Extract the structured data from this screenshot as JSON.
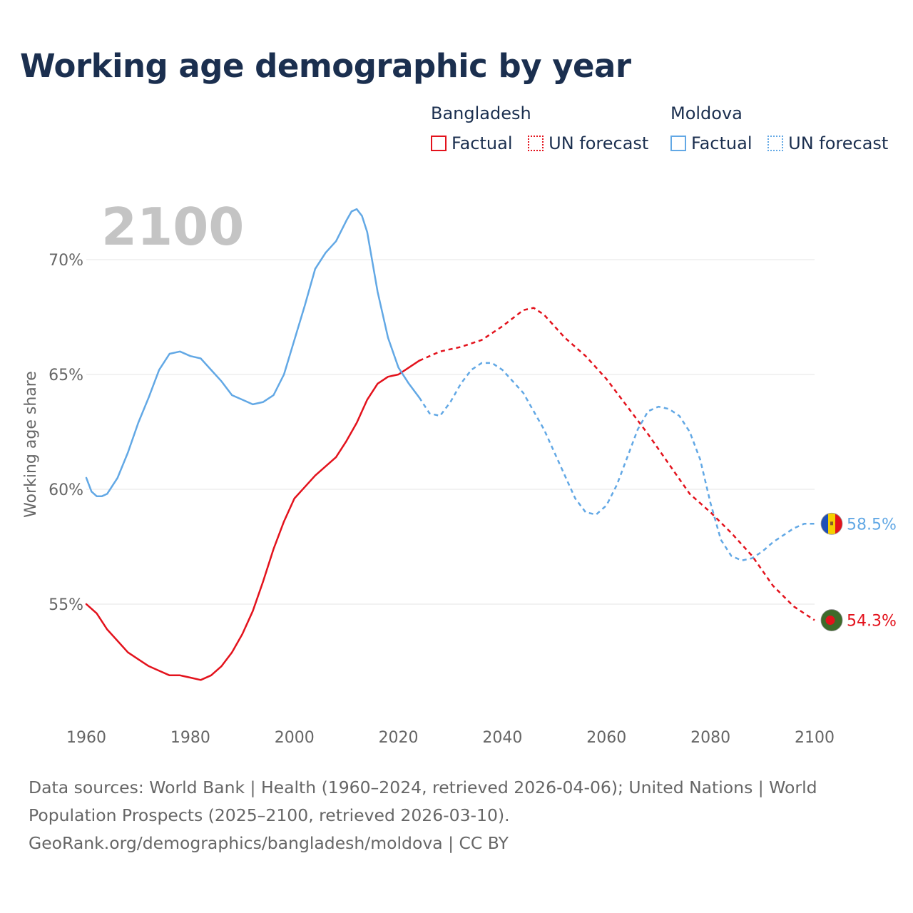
{
  "title": "Working age demographic by year",
  "legend": {
    "groups": [
      {
        "country": "Bangladesh",
        "color": "#e3121c",
        "factual_label": "Factual",
        "forecast_label": "UN forecast"
      },
      {
        "country": "Moldova",
        "color": "#62a8e5",
        "factual_label": "Factual",
        "forecast_label": "UN forecast"
      }
    ]
  },
  "year_watermark": "2100",
  "sources": {
    "line1": "Data sources: World Bank | Health (1960–2024, retrieved 2026-04-06); United Nations | World",
    "line2": "Population Prospects (2025–2100, retrieved 2026-03-10).",
    "line3": "GeoRank.org/demographics/bangladesh/moldova | CC BY"
  },
  "chart_data": {
    "type": "line",
    "title": "Working age demographic by year",
    "xlabel": "",
    "ylabel": "Working age share",
    "xlim": [
      1960,
      2100
    ],
    "ylim": [
      50.5,
      73
    ],
    "x_ticks": [
      1960,
      1980,
      2000,
      2020,
      2040,
      2060,
      2080,
      2100
    ],
    "x_tick_labels": [
      "1960",
      "1980",
      "2000",
      "2020",
      "2040",
      "2060",
      "2080",
      "2100"
    ],
    "y_ticks": [
      55,
      60,
      65,
      70
    ],
    "y_tick_labels": [
      "55%",
      "60%",
      "65%",
      "70%"
    ],
    "grid": true,
    "series": [
      {
        "name": "Bangladesh",
        "color": "#e3121c",
        "flag": "bangladesh-flag",
        "end_label": "54.3%",
        "factual": {
          "x": [
            1960,
            1962,
            1964,
            1966,
            1968,
            1970,
            1972,
            1974,
            1976,
            1978,
            1980,
            1982,
            1984,
            1986,
            1988,
            1990,
            1992,
            1994,
            1996,
            1998,
            2000,
            2002,
            2004,
            2006,
            2008,
            2010,
            2012,
            2014,
            2016,
            2018,
            2020,
            2022,
            2024
          ],
          "y": [
            55.0,
            54.6,
            53.9,
            53.4,
            52.9,
            52.6,
            52.3,
            52.1,
            51.9,
            51.9,
            51.8,
            51.7,
            51.9,
            52.3,
            52.9,
            53.7,
            54.7,
            56.0,
            57.4,
            58.6,
            59.6,
            60.1,
            60.6,
            61.0,
            61.4,
            62.1,
            62.9,
            63.9,
            64.6,
            64.9,
            65.0,
            65.3,
            65.6
          ]
        },
        "forecast": {
          "x": [
            2024,
            2028,
            2032,
            2036,
            2040,
            2044,
            2046,
            2048,
            2052,
            2056,
            2060,
            2064,
            2068,
            2072,
            2076,
            2080,
            2084,
            2088,
            2092,
            2096,
            2100
          ],
          "y": [
            65.6,
            66.0,
            66.2,
            66.5,
            67.1,
            67.8,
            67.9,
            67.6,
            66.6,
            65.8,
            64.8,
            63.6,
            62.4,
            61.1,
            59.8,
            59.0,
            58.1,
            57.1,
            55.8,
            54.9,
            54.3
          ]
        }
      },
      {
        "name": "Moldova",
        "color": "#62a8e5",
        "flag": "moldova-flag",
        "end_label": "58.5%",
        "factual": {
          "x": [
            1960,
            1961,
            1962,
            1963,
            1964,
            1966,
            1968,
            1970,
            1972,
            1974,
            1976,
            1978,
            1980,
            1982,
            1984,
            1986,
            1988,
            1990,
            1992,
            1994,
            1996,
            1998,
            2000,
            2002,
            2004,
            2006,
            2008,
            2010,
            2011,
            2012,
            2013,
            2014,
            2016,
            2018,
            2020,
            2022,
            2024
          ],
          "y": [
            60.5,
            59.9,
            59.7,
            59.7,
            59.8,
            60.5,
            61.6,
            62.9,
            64.0,
            65.2,
            65.9,
            66.0,
            65.8,
            65.7,
            65.2,
            64.7,
            64.1,
            63.9,
            63.7,
            63.8,
            64.1,
            65.0,
            66.5,
            68.0,
            69.6,
            70.3,
            70.8,
            71.7,
            72.1,
            72.2,
            71.9,
            71.2,
            68.6,
            66.6,
            65.3,
            64.6,
            64.0
          ]
        },
        "forecast": {
          "x": [
            2024,
            2026,
            2028,
            2030,
            2032,
            2034,
            2036,
            2038,
            2040,
            2044,
            2048,
            2052,
            2054,
            2056,
            2058,
            2060,
            2062,
            2064,
            2066,
            2068,
            2070,
            2072,
            2074,
            2076,
            2078,
            2080,
            2082,
            2084,
            2086,
            2088,
            2090,
            2092,
            2094,
            2096,
            2098,
            2100
          ],
          "y": [
            64.0,
            63.3,
            63.2,
            63.8,
            64.6,
            65.2,
            65.5,
            65.5,
            65.2,
            64.2,
            62.6,
            60.6,
            59.6,
            59.0,
            58.9,
            59.3,
            60.2,
            61.4,
            62.6,
            63.4,
            63.6,
            63.5,
            63.2,
            62.5,
            61.3,
            59.4,
            57.8,
            57.1,
            56.9,
            57.0,
            57.3,
            57.7,
            58.0,
            58.3,
            58.5,
            58.5
          ]
        }
      }
    ]
  }
}
